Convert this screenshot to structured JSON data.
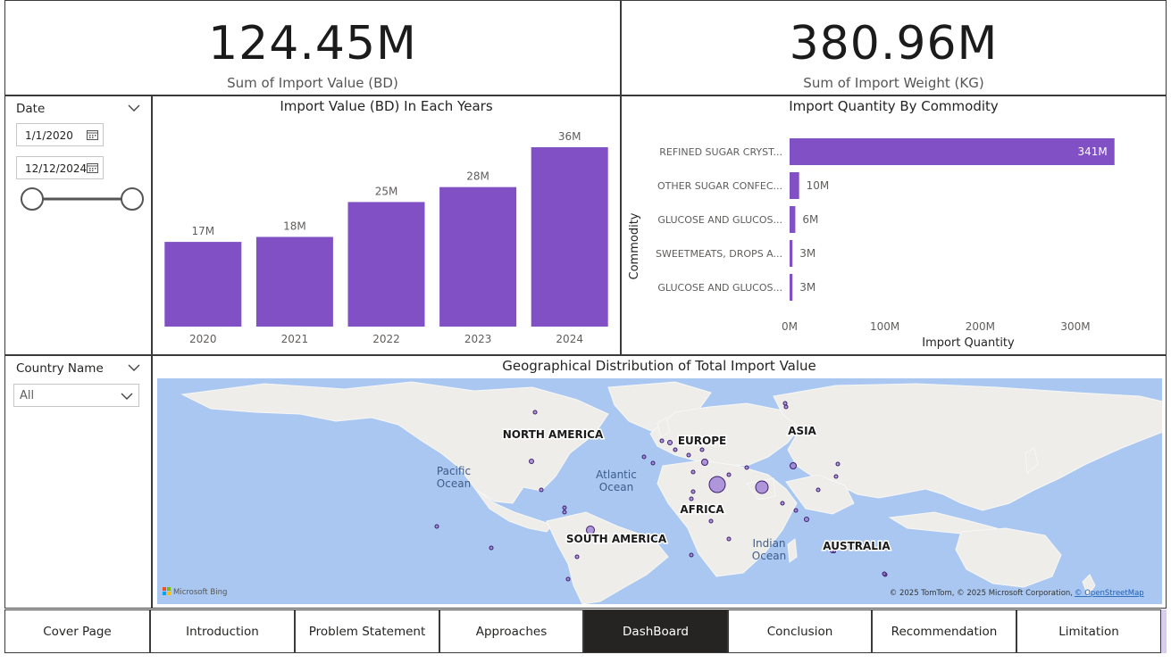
{
  "kpis": [
    {
      "value": "124.45M",
      "label": "Sum of Import Value (BD)"
    },
    {
      "value": "380.96M",
      "label": "Sum of Import Weight (KG)"
    }
  ],
  "date_slicer": {
    "title": "Date",
    "start": "1/1/2020",
    "end": "12/12/2024",
    "range": [
      0,
      1
    ]
  },
  "country_slicer": {
    "title": "Country Name",
    "selected": "All"
  },
  "year_chart": {
    "title": "Import Value (BD) In Each Years"
  },
  "commodity_chart": {
    "title": "Import Quantity By Commodity",
    "ylabel": "Commodity",
    "xlabel": "Import Quantity",
    "x_ticks": [
      "0M",
      "100M",
      "200M",
      "300M"
    ]
  },
  "map": {
    "title": "Geographical Distribution of Total Import Value",
    "labels": {
      "north_america": "NORTH AMERICA",
      "europe": "EUROPE",
      "asia": "ASIA",
      "africa": "AFRICA",
      "south_america": "SOUTH AMERICA",
      "australia": "AUSTRALIA",
      "pacific_1": "Pacific",
      "pacific_2": "Ocean",
      "atlantic_1": "Atlantic",
      "atlantic_2": "Ocean",
      "indian_1": "Indian",
      "indian_2": "Ocean"
    },
    "logo": "Microsoft Bing",
    "attribution": "© 2025 TomTom, © 2025 Microsoft Corporation,",
    "attribution_link": "© OpenStreetMap"
  },
  "nav": [
    "Cover Page",
    "Introduction",
    "Problem Statement",
    "Approaches",
    "DashBoard",
    "Conclusion",
    "Recommendation",
    "Limitation"
  ],
  "nav_active": "DashBoard",
  "colors": {
    "bar": "#8150c4",
    "map_water": "#a9c7f1",
    "land": "#eeede9",
    "bubble": "#9a78d4",
    "active_nav": "#252423"
  },
  "chart_data": [
    {
      "type": "bar",
      "title": "Import Value (BD) In Each Years",
      "categories": [
        "2020",
        "2021",
        "2022",
        "2023",
        "2024"
      ],
      "values": [
        17,
        18,
        25,
        28,
        36
      ],
      "data_labels": [
        "17M",
        "18M",
        "25M",
        "28M",
        "36M"
      ],
      "ylim": [
        0,
        36
      ]
    },
    {
      "type": "bar",
      "orientation": "horizontal",
      "title": "Import Quantity By Commodity",
      "categories": [
        "REFINED SUGAR CRYST...",
        "OTHER SUGAR CONFEC...",
        "GLUCOSE AND GLUCOS...",
        "SWEETMEATS, DROPS A...",
        "GLUCOSE AND GLUCOS..."
      ],
      "values": [
        341,
        10,
        6,
        3,
        3
      ],
      "data_labels": [
        "341M",
        "10M",
        "6M",
        "3M",
        "3M"
      ],
      "xlabel": "Import Quantity",
      "ylabel": "Commodity",
      "xlim": [
        0,
        350
      ]
    }
  ]
}
